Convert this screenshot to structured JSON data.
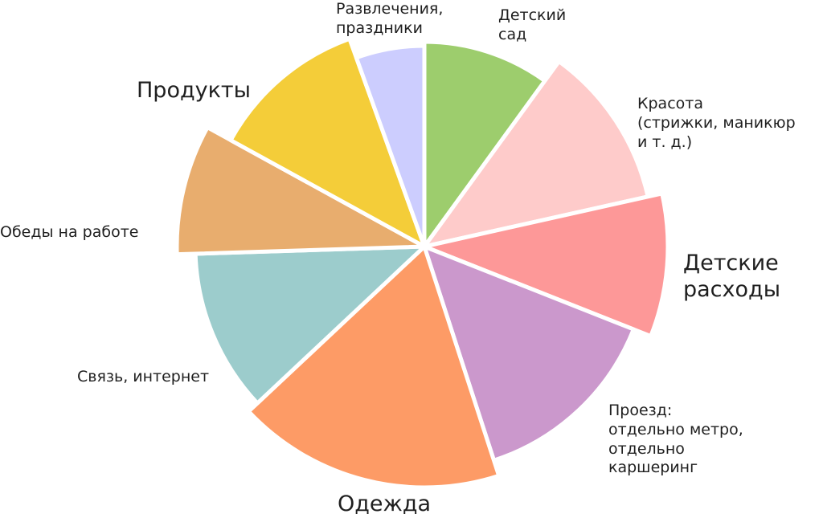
{
  "chart_data": {
    "type": "pie",
    "style": "exploded wedges with unequal radii",
    "slices": [
      {
        "label": "Детский\nсад",
        "value": 10,
        "color": "#9dcd6d"
      },
      {
        "label": "Красота\n(стрижки, маникюр\nи т. д.)",
        "value": 11.5,
        "color": "#fecbca"
      },
      {
        "label": "Детские\nрасходы",
        "value": 9.5,
        "color": "#fd9898"
      },
      {
        "label": "Проезд:\nотдельно метро,\nотдельно\nкаршеринг",
        "value": 14,
        "color": "#cb98cc"
      },
      {
        "label": "Одежда",
        "value": 18,
        "color": "#fd9b66"
      },
      {
        "label": "Связь, интернет",
        "value": 11.5,
        "color": "#9ccccc"
      },
      {
        "label": "Обеды на работе",
        "value": 8.5,
        "color": "#e8ad6e"
      },
      {
        "label": "Продукты",
        "value": 11.5,
        "color": "#f4cd39"
      },
      {
        "label": "Развлечения,\nпраздники",
        "value": 5.5,
        "color": "#cccdfe"
      }
    ]
  }
}
